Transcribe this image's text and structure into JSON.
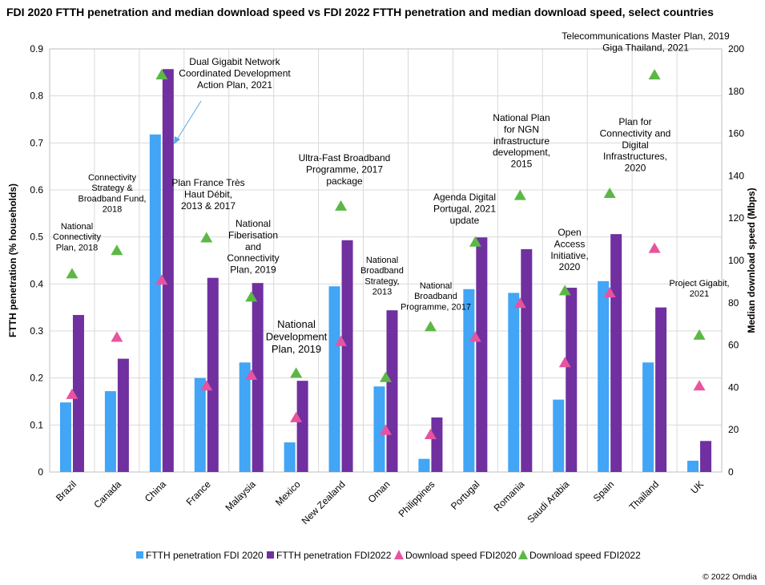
{
  "chart_data": {
    "type": "bar",
    "title": "FDI 2020 FTTH penetration and median download speed vs FDI 2022 FTTH penetration and median download speed, select countries",
    "ylabel": "FTTH penetration (% households)",
    "y2label": "Median download speed (Mbps)",
    "ylim": [
      0,
      0.9
    ],
    "y2lim": [
      0,
      200
    ],
    "yticks": [
      "0",
      "0.1",
      "0.2",
      "0.3",
      "0.4",
      "0.5",
      "0.6",
      "0.7",
      "0.8",
      "0.9"
    ],
    "y2ticks": [
      "0",
      "20",
      "40",
      "60",
      "80",
      "100",
      "120",
      "140",
      "160",
      "180",
      "200"
    ],
    "grid": true,
    "legend_position": "bottom",
    "categories": [
      "Brazil",
      "Canada",
      "China",
      "France",
      "Malaysia",
      "Mexico",
      "New Zealand",
      "Oman",
      "Philippines",
      "Portugal",
      "Romania",
      "Saudi Arabia",
      "Spain",
      "Thailand",
      "UK"
    ],
    "series": [
      {
        "name": "FTTH penetration FDI 2020",
        "kind": "bar",
        "axis": "left",
        "color": "#42a5f5",
        "values": [
          0.148,
          0.172,
          0.718,
          0.2,
          0.233,
          0.063,
          0.395,
          0.182,
          0.028,
          0.389,
          0.381,
          0.154,
          0.406,
          0.233,
          0.024
        ]
      },
      {
        "name": "FTTH penetration FDI2022",
        "kind": "bar",
        "axis": "left",
        "color": "#7030a0",
        "values": [
          0.334,
          0.241,
          0.857,
          0.413,
          0.402,
          0.194,
          0.493,
          0.344,
          0.116,
          0.499,
          0.474,
          0.392,
          0.506,
          0.35,
          0.066
        ]
      },
      {
        "name": "Download speed FDI2020",
        "kind": "triangle",
        "axis": "right",
        "color": "#e8539f",
        "values": [
          37,
          64,
          91,
          41,
          46,
          26,
          62,
          20,
          18,
          64,
          80,
          52,
          85,
          106,
          41
        ]
      },
      {
        "name": "Download speed FDI2022",
        "kind": "triangle",
        "axis": "right",
        "color": "#5cb846",
        "values": [
          94,
          105,
          188,
          111,
          83,
          47,
          126,
          45,
          69,
          109,
          131,
          86,
          132,
          188,
          65
        ]
      }
    ],
    "annotations": [
      {
        "text": [
          "National",
          "Connectivity",
          "Plan, 2018"
        ],
        "size": 11
      },
      {
        "text": [
          "Connectivity",
          "Strategy &",
          "Broadband Fund,",
          "2018"
        ],
        "size": 11
      },
      {
        "text": [
          "Dual Gigabit Network",
          "Coordinated Development",
          "Action Plan, 2021"
        ],
        "size": 12
      },
      {
        "text": [
          "Plan France Très",
          "Haut Débit,",
          "2013 & 2017"
        ],
        "size": 12
      },
      {
        "text": [
          "National",
          "Fiberisation",
          "and",
          "Connectivity",
          "Plan, 2019"
        ],
        "size": 12
      },
      {
        "text": [
          "National",
          "Development",
          "Plan, 2019"
        ],
        "size": 13
      },
      {
        "text": [
          "Ultra-Fast Broadband",
          "Programme, 2017",
          "package"
        ],
        "size": 12
      },
      {
        "text": [
          "National",
          "Broadband",
          "Strategy,",
          "2013"
        ],
        "size": 11
      },
      {
        "text": [
          "National",
          "Broadband",
          "Programme, 2017"
        ],
        "size": 11
      },
      {
        "text": [
          "Agenda Digital",
          "Portugal, 2021",
          "update"
        ],
        "size": 12
      },
      {
        "text": [
          "National Plan",
          "for NGN",
          "infrastructure",
          "development,",
          "2015"
        ],
        "size": 12
      },
      {
        "text": [
          "Open",
          "Access",
          "Initiative,",
          "2020"
        ],
        "size": 12
      },
      {
        "text": [
          "Plan for",
          "Connectivity and",
          "Digital",
          "Infrastructures,",
          "2020"
        ],
        "size": 12
      },
      {
        "text": [
          "Telecommunications Master Plan, 2019",
          "Giga Thailand, 2021"
        ],
        "size": 12
      },
      {
        "text": [
          "Project Gigabit,",
          "2021"
        ],
        "size": 11
      }
    ]
  },
  "copyright": "© 2022 Omdia"
}
